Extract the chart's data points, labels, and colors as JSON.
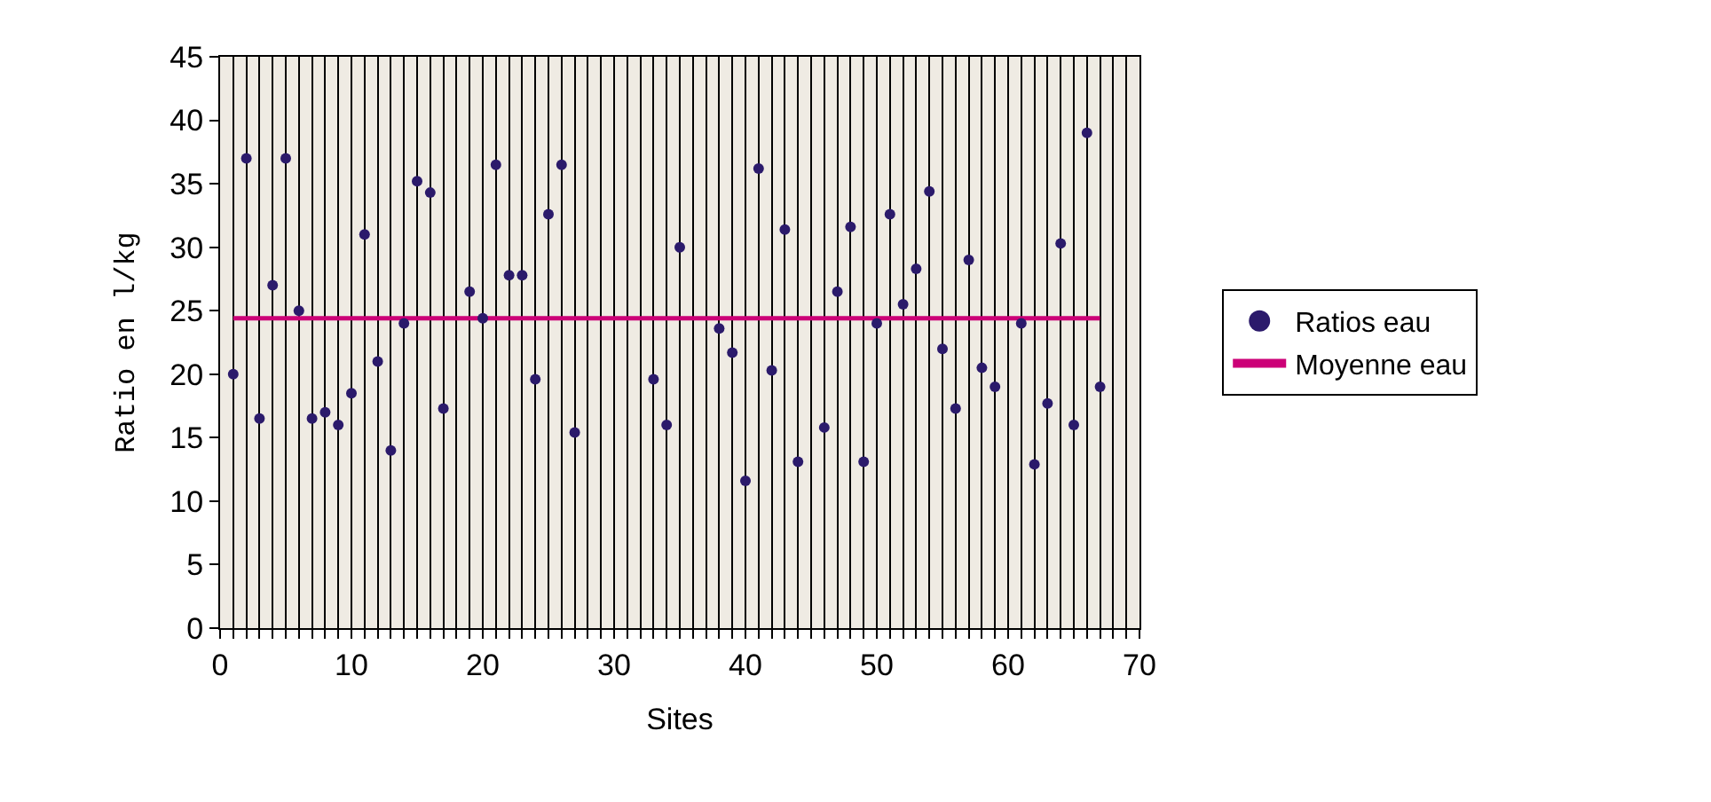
{
  "chart_data": {
    "type": "scatter",
    "xlabel": "Sites",
    "ylabel": "Ratio en l/kg",
    "series": [
      {
        "name": "Ratios eau",
        "marker": "circle",
        "color": "#2b1a6b",
        "x": [
          1,
          2,
          3,
          4,
          5,
          6,
          7,
          8,
          9,
          10,
          11,
          12,
          13,
          14,
          15,
          16,
          17,
          19,
          20,
          21,
          22,
          23,
          24,
          25,
          26,
          27,
          33,
          34,
          35,
          38,
          39,
          40,
          41,
          42,
          43,
          44,
          46,
          47,
          48,
          49,
          50,
          51,
          52,
          53,
          54,
          55,
          56,
          57,
          58,
          59,
          61,
          62,
          63,
          64,
          65,
          66,
          67
        ],
        "values": [
          20,
          37,
          16.5,
          27,
          37,
          25,
          16.5,
          17,
          16,
          18.5,
          31,
          21,
          14,
          24,
          35.2,
          34.3,
          17.3,
          26.5,
          24.4,
          36.5,
          27.8,
          27.8,
          19.6,
          32.6,
          36.5,
          15.4,
          19.6,
          16,
          30,
          23.6,
          21.7,
          11.6,
          36.2,
          20.3,
          31.4,
          13.1,
          15.8,
          26.5,
          31.6,
          13.1,
          24,
          32.6,
          25.5,
          28.3,
          34.4,
          22,
          17.3,
          29,
          20.5,
          19,
          24,
          12.9,
          17.7,
          30.3,
          16,
          39,
          19
        ]
      },
      {
        "name": "Moyenne eau",
        "type": "line",
        "marker": "none",
        "line_style": "solid",
        "color": "#cc0077",
        "x": [
          1,
          67
        ],
        "values": [
          24.4,
          24.4
        ]
      }
    ],
    "xlim": [
      0,
      70
    ],
    "ylim": [
      0,
      45
    ],
    "xticks": [
      0,
      {
        "value": 1,
        "label": null
      },
      {
        "value": 2,
        "label": null
      },
      {
        "value": 3,
        "label": null
      },
      {
        "value": 4,
        "label": null
      },
      {
        "value": 5,
        "label": null
      },
      {
        "value": 6,
        "label": null
      },
      {
        "value": 7,
        "label": null
      },
      {
        "value": 8,
        "label": null
      },
      {
        "value": 9,
        "label": null
      },
      10,
      {
        "value": 11,
        "label": null
      },
      {
        "value": 12,
        "label": null
      },
      {
        "value": 13,
        "label": null
      },
      {
        "value": 14,
        "label": null
      },
      {
        "value": 15,
        "label": null
      },
      {
        "value": 16,
        "label": null
      },
      {
        "value": 17,
        "label": null
      },
      {
        "value": 18,
        "label": null
      },
      {
        "value": 19,
        "label": null
      },
      20,
      {
        "value": 21,
        "label": null
      },
      {
        "value": 22,
        "label": null
      },
      {
        "value": 23,
        "label": null
      },
      {
        "value": 24,
        "label": null
      },
      {
        "value": 25,
        "label": null
      },
      {
        "value": 26,
        "label": null
      },
      {
        "value": 27,
        "label": null
      },
      {
        "value": 28,
        "label": null
      },
      {
        "value": 29,
        "label": null
      },
      30,
      {
        "value": 31,
        "label": null
      },
      {
        "value": 32,
        "label": null
      },
      {
        "value": 33,
        "label": null
      },
      {
        "value": 34,
        "label": null
      },
      {
        "value": 35,
        "label": null
      },
      {
        "value": 36,
        "label": null
      },
      {
        "value": 37,
        "label": null
      },
      {
        "value": 38,
        "label": null
      },
      {
        "value": 39,
        "label": null
      },
      40,
      {
        "value": 41,
        "label": null
      },
      {
        "value": 42,
        "label": null
      },
      {
        "value": 43,
        "label": null
      },
      {
        "value": 44,
        "label": null
      },
      {
        "value": 45,
        "label": null
      },
      {
        "value": 46,
        "label": null
      },
      {
        "value": 47,
        "label": null
      },
      {
        "value": 48,
        "label": null
      },
      {
        "value": 49,
        "label": null
      },
      50,
      {
        "value": 51,
        "label": null
      },
      {
        "value": 52,
        "label": null
      },
      {
        "value": 53,
        "label": null
      },
      {
        "value": 54,
        "label": null
      },
      {
        "value": 55,
        "label": null
      },
      {
        "value": 56,
        "label": null
      },
      {
        "value": 57,
        "label": null
      },
      {
        "value": 58,
        "label": null
      },
      {
        "value": 59,
        "label": null
      },
      60,
      {
        "value": 61,
        "label": null
      },
      {
        "value": 62,
        "label": null
      },
      {
        "value": 63,
        "label": null
      },
      {
        "value": 64,
        "label": null
      },
      {
        "value": 65,
        "label": null
      },
      {
        "value": 66,
        "label": null
      },
      {
        "value": 67,
        "label": null
      },
      {
        "value": 68,
        "label": null
      },
      {
        "value": 69,
        "label": null
      },
      70
    ],
    "yticks": [
      0,
      5,
      10,
      15,
      20,
      25,
      30,
      35,
      40,
      45
    ],
    "grid": "x",
    "legend": "right"
  }
}
